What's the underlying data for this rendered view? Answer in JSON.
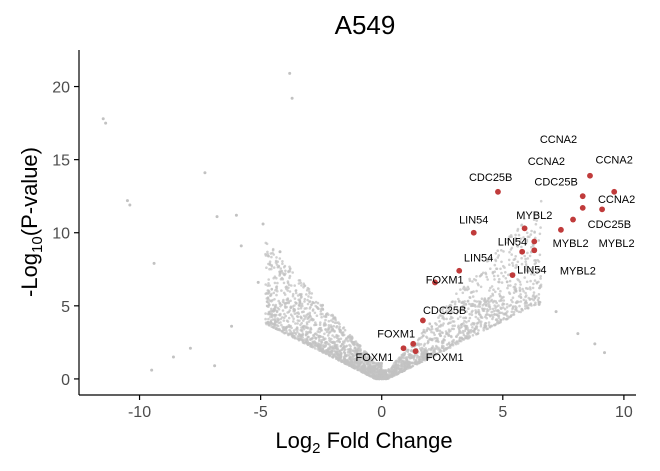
{
  "chart_data": {
    "type": "scatter",
    "title": "A549",
    "xlabel": {
      "main": "Log",
      "sub": "2",
      "rest": " Fold Change"
    },
    "ylabel": {
      "main": "-Log",
      "sub": "10",
      "rest": "(P-value)"
    },
    "xlim": [
      -12.5,
      10.5
    ],
    "ylim": [
      -1.1,
      22.5
    ],
    "x_ticks": [
      -10,
      -5,
      0,
      5,
      10
    ],
    "y_ticks": [
      0,
      5,
      10,
      15,
      20
    ],
    "grid": false,
    "colors": {
      "background": "#e0e0e0",
      "highlight": "#c03b3b",
      "axis": "#000000",
      "tick_text": "#4d4d4d"
    },
    "background_points": [
      {
        "x": -11.5,
        "y": 17.8
      },
      {
        "x": -11.4,
        "y": 17.5
      },
      {
        "x": -10.5,
        "y": 12.2
      },
      {
        "x": -10.4,
        "y": 11.9
      },
      {
        "x": -9.4,
        "y": 7.9
      },
      {
        "x": -7.3,
        "y": 14.1
      },
      {
        "x": -6.8,
        "y": 11.1
      },
      {
        "x": -6.0,
        "y": 11.2
      },
      {
        "x": -5.8,
        "y": 9.1
      },
      {
        "x": -3.8,
        "y": 20.9
      },
      {
        "x": -3.7,
        "y": 19.2
      },
      {
        "x": -5.1,
        "y": 6.6
      },
      {
        "x": -4.9,
        "y": 10.6
      },
      {
        "x": -4.2,
        "y": 8.7
      },
      {
        "x": -6.2,
        "y": 3.6
      },
      {
        "x": -7.9,
        "y": 2.1
      },
      {
        "x": -8.6,
        "y": 1.5
      },
      {
        "x": -6.9,
        "y": 0.9
      },
      {
        "x": -9.5,
        "y": 0.6
      },
      {
        "x": 7.2,
        "y": 4.6
      },
      {
        "x": 8.1,
        "y": 3.1
      },
      {
        "x": 8.8,
        "y": 2.4
      },
      {
        "x": 9.2,
        "y": 1.8
      },
      {
        "x": 6.5,
        "y": 5.1
      }
    ],
    "highlighted": [
      {
        "gene": "CCNA2",
        "x": 8.6,
        "y": 13.9
      },
      {
        "gene": "CCNA2",
        "x": 9.6,
        "y": 12.8
      },
      {
        "gene": "CCNA2",
        "x": 9.1,
        "y": 11.6
      },
      {
        "gene": "CDC25B",
        "x": 4.8,
        "y": 12.8
      },
      {
        "gene": "CDC25B",
        "x": 8.3,
        "y": 12.5
      },
      {
        "gene": "CDC25B",
        "x": 7.9,
        "y": 10.9
      },
      {
        "gene": "MYBL2",
        "x": 5.9,
        "y": 10.3
      },
      {
        "gene": "MYBL2",
        "x": 7.4,
        "y": 10.2
      },
      {
        "gene": "MYBL2",
        "x": 8.3,
        "y": 11.7
      },
      {
        "gene": "MYBL2",
        "x": 6.3,
        "y": 8.8
      },
      {
        "gene": "LIN54",
        "x": 3.8,
        "y": 10.0
      },
      {
        "gene": "LIN54",
        "x": 6.3,
        "y": 9.4
      },
      {
        "gene": "LIN54",
        "x": 5.8,
        "y": 8.7
      },
      {
        "gene": "LIN54",
        "x": 3.2,
        "y": 7.4
      },
      {
        "gene": "LIN54",
        "x": 5.4,
        "y": 7.1
      },
      {
        "gene": "FOXM1",
        "x": 2.2,
        "y": 6.6
      },
      {
        "gene": "CDC25B",
        "x": 1.7,
        "y": 4.0
      },
      {
        "gene": "FOXM1",
        "x": 1.3,
        "y": 2.4
      },
      {
        "gene": "FOXM1",
        "x": 0.9,
        "y": 2.1
      },
      {
        "gene": "FOXM1",
        "x": 1.4,
        "y": 1.9
      }
    ],
    "annotations": [
      {
        "text": "CCNA2",
        "x": 7.3,
        "y": 16.4
      },
      {
        "text": "CCNA2",
        "x": 6.8,
        "y": 14.9
      },
      {
        "text": "CCNA2",
        "x": 9.6,
        "y": 15.0
      },
      {
        "text": "CDC25B",
        "x": 4.5,
        "y": 13.8
      },
      {
        "text": "CDC25B",
        "x": 7.2,
        "y": 13.5
      },
      {
        "text": "CCNA2",
        "x": 9.7,
        "y": 12.3
      },
      {
        "text": "MYBL2",
        "x": 6.3,
        "y": 11.2
      },
      {
        "text": "CDC25B",
        "x": 9.4,
        "y": 10.6
      },
      {
        "text": "LIN54",
        "x": 3.8,
        "y": 10.9
      },
      {
        "text": "LIN54",
        "x": 5.4,
        "y": 9.4
      },
      {
        "text": "MYBL2",
        "x": 7.8,
        "y": 9.3
      },
      {
        "text": "MYBL2",
        "x": 9.7,
        "y": 9.3
      },
      {
        "text": "LIN54",
        "x": 4.0,
        "y": 8.3
      },
      {
        "text": "LIN54",
        "x": 6.2,
        "y": 7.5
      },
      {
        "text": "MYBL2",
        "x": 8.1,
        "y": 7.4
      },
      {
        "text": "FOXM1",
        "x": 2.6,
        "y": 6.8
      },
      {
        "text": "CDC25B",
        "x": 2.6,
        "y": 4.7
      },
      {
        "text": "FOXM1",
        "x": 0.6,
        "y": 3.1
      },
      {
        "text": "FOXM1",
        "x": -0.3,
        "y": 1.5
      },
      {
        "text": "FOXM1",
        "x": 2.6,
        "y": 1.5
      }
    ]
  }
}
